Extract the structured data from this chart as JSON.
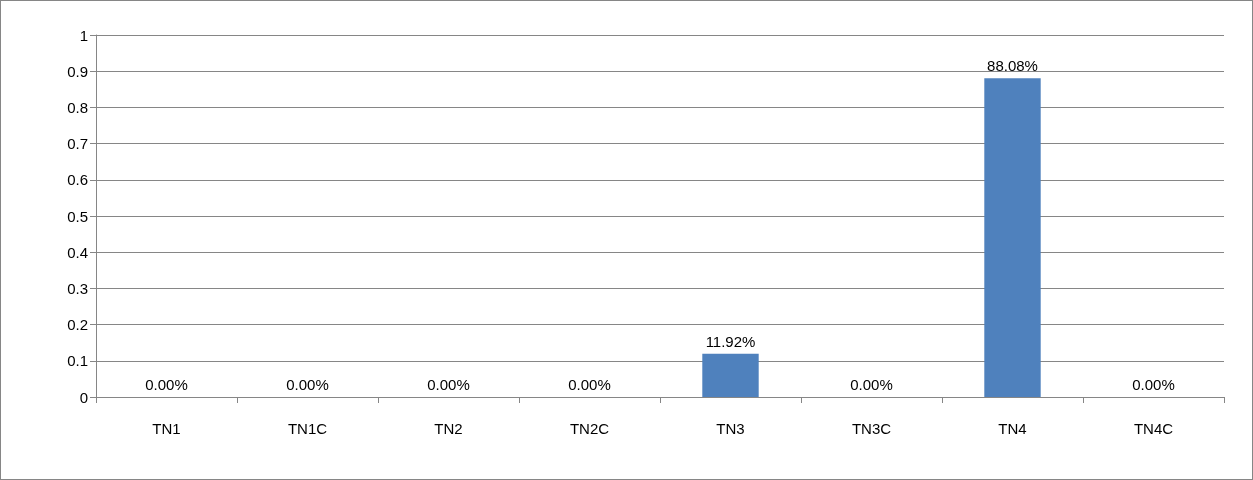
{
  "chart_data": {
    "type": "bar",
    "categories": [
      "TN1",
      "TN1C",
      "TN2",
      "TN2C",
      "TN3",
      "TN3C",
      "TN4",
      "TN4C"
    ],
    "values": [
      0,
      0,
      0,
      0,
      0.1192,
      0,
      0.8808,
      0
    ],
    "value_labels": [
      "0.00%",
      "0.00%",
      "0.00%",
      "0.00%",
      "11.92%",
      "0.00%",
      "88.08%",
      "0.00%"
    ],
    "color": "#4f81bd",
    "ylim": [
      0,
      1
    ],
    "yticks": [
      0,
      0.1,
      0.2,
      0.3,
      0.4,
      0.5,
      0.6,
      0.7,
      0.8,
      0.9,
      1
    ],
    "grid": "y"
  }
}
